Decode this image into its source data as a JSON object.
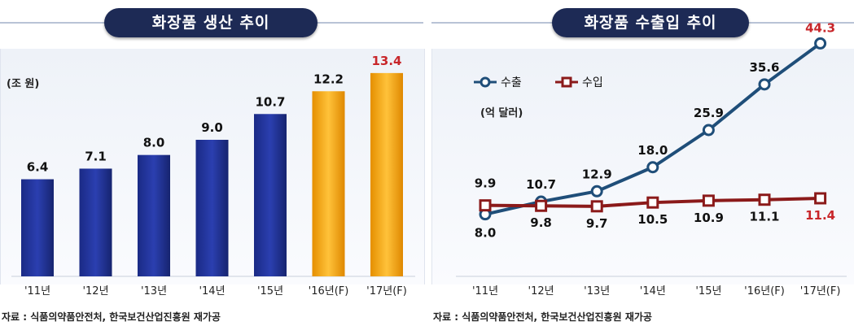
{
  "chart_data": [
    {
      "type": "bar",
      "title": "화장품 생산 추이",
      "unit": "(조 원)",
      "categories": [
        "'11년",
        "'12년",
        "'13년",
        "'14년",
        "'15년",
        "'16년(F)",
        "'17년(F)"
      ],
      "values": [
        6.4,
        7.1,
        8.0,
        9.0,
        10.7,
        12.2,
        13.4
      ],
      "value_labels": [
        "6.4",
        "7.1",
        "8.0",
        "9.0",
        "10.7",
        "12.2",
        "13.4"
      ],
      "bar_colors": [
        "#22349a",
        "#22349a",
        "#22349a",
        "#22349a",
        "#22349a",
        "#f0a20a",
        "#f0a20a"
      ],
      "label_colors": [
        "#111111",
        "#111111",
        "#111111",
        "#111111",
        "#111111",
        "#111111",
        "#c8262a"
      ],
      "ylim": [
        0,
        15
      ],
      "source": "자료 : 식품의약품안전처, 한국보건산업진흥원 재가공"
    },
    {
      "type": "line",
      "title": "화장품 수출입 추이",
      "unit": "(억 달러)",
      "categories": [
        "'11년",
        "'12년",
        "'13년",
        "'14년",
        "'15년",
        "'16년(F)",
        "'17년(F)"
      ],
      "series": [
        {
          "name": "수출",
          "values": [
            8.0,
            10.7,
            12.9,
            18.0,
            25.9,
            35.6,
            44.3
          ],
          "value_labels": [
            "8.0",
            "10.7",
            "12.9",
            "18.0",
            "25.9",
            "35.6",
            "44.3"
          ],
          "label_colors": [
            "#111111",
            "#111111",
            "#111111",
            "#111111",
            "#111111",
            "#111111",
            "#c8262a"
          ],
          "color": "#1f4e79"
        },
        {
          "name": "수입",
          "values": [
            9.9,
            9.8,
            9.7,
            10.5,
            10.9,
            11.1,
            11.4
          ],
          "value_labels": [
            "9.9",
            "9.8",
            "9.7",
            "10.5",
            "10.9",
            "11.1",
            "11.4"
          ],
          "label_colors": [
            "#111111",
            "#111111",
            "#111111",
            "#111111",
            "#111111",
            "#111111",
            "#c8262a"
          ],
          "color": "#8b1a1a"
        }
      ],
      "ylim": [
        0,
        48
      ],
      "source": "자료 : 식품의약품안전처, 한국보건산업진흥원 재가공"
    }
  ]
}
